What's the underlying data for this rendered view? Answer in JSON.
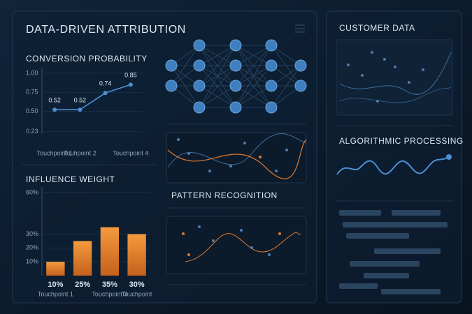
{
  "header": {
    "title": "DATA-DRIVEN ATTRIBUTION"
  },
  "chart_data": [
    {
      "type": "line",
      "title": "CONVERSION PROBABILITY",
      "categories": [
        "Touchpoint 1",
        "Touhpoint 2",
        null,
        "Touchpoint 4"
      ],
      "values": [
        0.52,
        0.52,
        0.74,
        0.85
      ],
      "color": "#4a8fd4",
      "ylim": [
        0.2,
        1.0
      ],
      "yticks": [
        {
          "value": 1,
          "label": "1.00"
        },
        0.75,
        {
          "value": 0.5,
          "label": "0.50"
        },
        0.23
      ]
    },
    {
      "type": "bar",
      "title": "INFLUENCE WEIGHT",
      "categories": [
        "Touchpoint 1",
        null,
        "Touchpoint 3",
        "Touchpoint"
      ],
      "values": [
        10,
        25,
        35,
        30
      ],
      "value_labels": [
        "10%",
        "25%",
        "35%",
        "30%"
      ],
      "color": "#ee8a2e",
      "ylim": [
        0,
        60
      ],
      "yticks": [
        {
          "value": 60,
          "label": "60%"
        },
        {
          "value": 30,
          "label": "30%"
        },
        {
          "value": 20,
          "label": "20%"
        },
        {
          "value": 10,
          "label": "10%"
        }
      ]
    }
  ],
  "panels": {
    "pattern": "PATTERN RECOGNITION",
    "customer": "CUSTOMER DATA",
    "algorithmic": "ALGORITHMIC PROCESSING"
  }
}
